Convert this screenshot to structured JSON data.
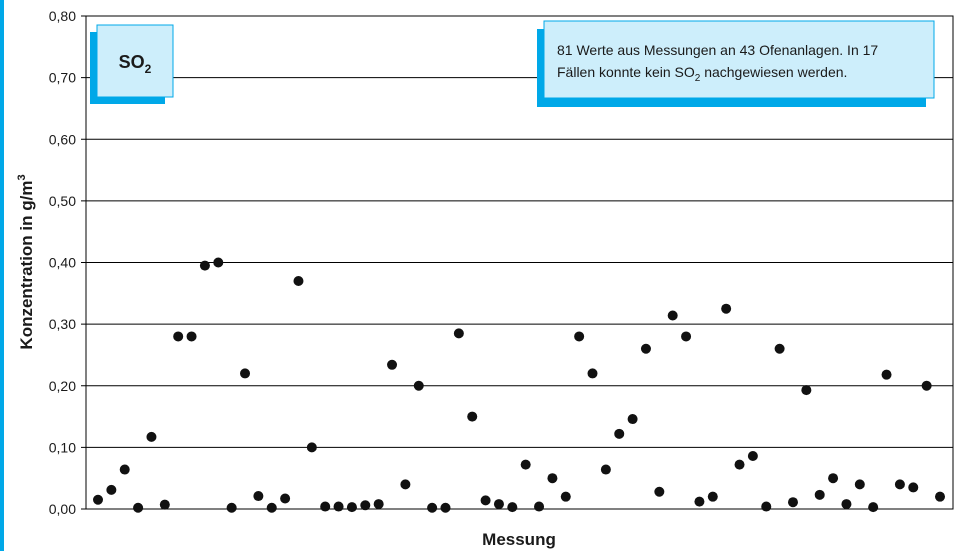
{
  "colors": {
    "accent_edge": "#00a8e8",
    "box_fill": "#cdeefb",
    "box_shadow": "#00a8e8",
    "marker": "#111111",
    "grid": "#000000"
  },
  "badge": {
    "main": "SO",
    "sub": "2"
  },
  "note": {
    "line1": "81 Werte aus Messungen an 43 Ofenanlagen. In 17",
    "line2_pre": "Fällen konnte kein SO",
    "line2_sub": "2",
    "line2_post": " nachgewiesen werden."
  },
  "chart_data": {
    "type": "scatter",
    "title": "",
    "xlabel": "Messung",
    "ylabel_pre": "Konzentration in g/m",
    "ylabel_sup": "3",
    "ylim": [
      0,
      0.8
    ],
    "xlim": [
      0,
      64
    ],
    "grid": true,
    "y_ticks": [
      "0,00",
      "0,10",
      "0,20",
      "0,30",
      "0,40",
      "0,50",
      "0,60",
      "0,70",
      "0,80"
    ],
    "x": [
      1,
      2,
      3,
      4,
      5,
      6,
      7,
      8,
      9,
      10,
      11,
      12,
      13,
      14,
      15,
      16,
      17,
      18,
      19,
      20,
      21,
      22,
      23,
      24,
      25,
      26,
      27,
      28,
      29,
      30,
      31,
      32,
      33,
      34,
      35,
      36,
      37,
      38,
      39,
      40,
      41,
      42,
      43,
      44,
      45,
      46,
      47,
      48,
      49,
      50,
      51,
      52,
      53,
      54,
      55,
      56,
      57,
      58,
      59,
      60,
      61,
      62,
      63,
      64
    ],
    "y": [
      0.015,
      0.031,
      0.064,
      0.002,
      0.117,
      0.007,
      0.28,
      0.28,
      0.395,
      0.4,
      0.002,
      0.22,
      0.021,
      0.002,
      0.017,
      0.37,
      0.1,
      0.004,
      0.004,
      0.003,
      0.006,
      0.008,
      0.234,
      0.04,
      0.2,
      0.002,
      0.002,
      0.285,
      0.15,
      0.014,
      0.008,
      0.003,
      0.072,
      0.004,
      0.05,
      0.02,
      0.28,
      0.22,
      0.064,
      0.122,
      0.146,
      0.26,
      0.028,
      0.314,
      0.28,
      0.012,
      0.02,
      0.325,
      0.072,
      0.086,
      0.004,
      0.26,
      0.011,
      0.193,
      0.023,
      0.05,
      0.008,
      0.04,
      0.003,
      0.218,
      0.04,
      0.035,
      0.2,
      0.02
    ]
  }
}
